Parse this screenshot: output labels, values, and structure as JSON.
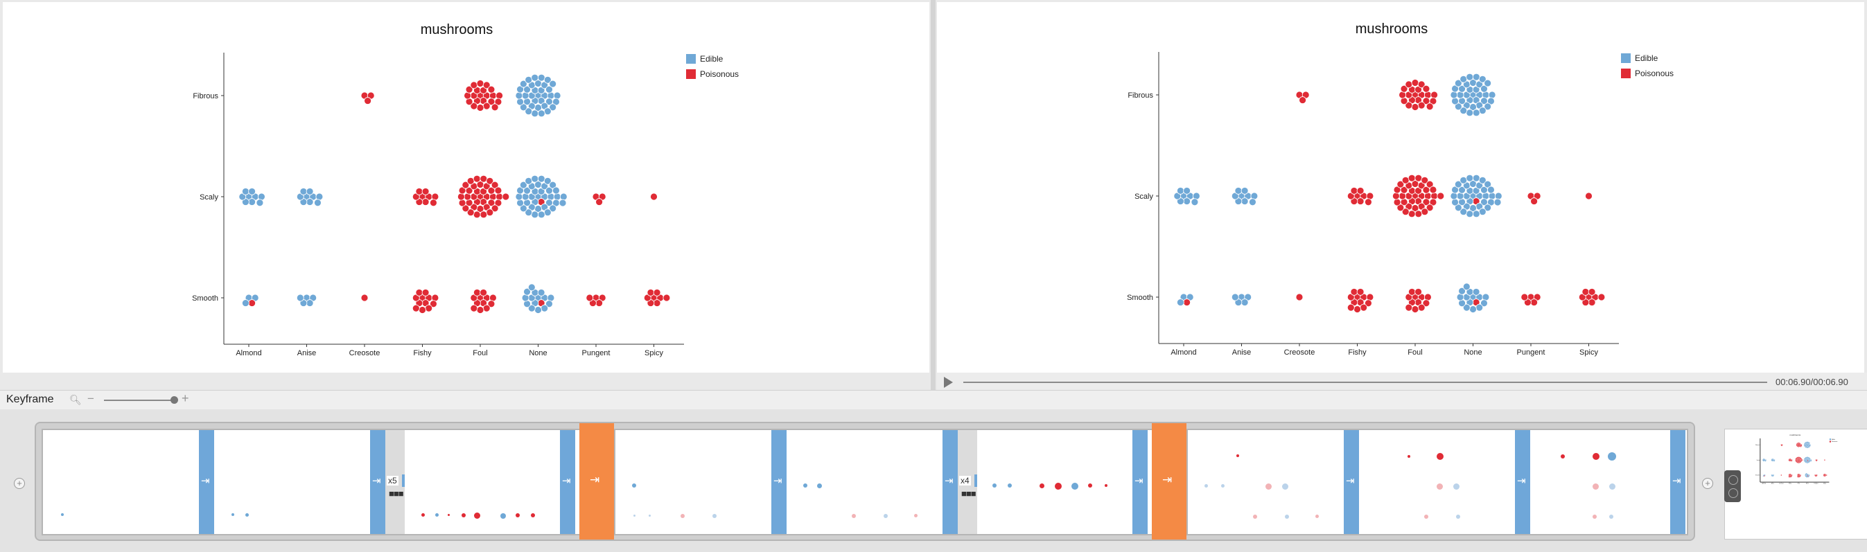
{
  "chart_data": [
    {
      "type": "scatter",
      "title": "mushrooms",
      "categories_x": [
        "Almond",
        "Anise",
        "Creosote",
        "Fishy",
        "Foul",
        "None",
        "Pungent",
        "Spicy"
      ],
      "categories_y": [
        "Fibrous",
        "Scaly",
        "Smooth"
      ],
      "legend": {
        "placement": "top-right",
        "entries": [
          {
            "name": "Edible",
            "color": "#6fa8d6"
          },
          {
            "name": "Poisonous",
            "color": "#e02b35"
          }
        ]
      },
      "clusters": [
        {
          "x": "Creosote",
          "y": "Fibrous",
          "edible": 0,
          "poisonous": 3
        },
        {
          "x": "Foul",
          "y": "Fibrous",
          "edible": 0,
          "poisonous": 22
        },
        {
          "x": "None",
          "y": "Fibrous",
          "edible": 36,
          "poisonous": 0
        },
        {
          "x": "Almond",
          "y": "Scaly",
          "edible": 9,
          "poisonous": 0
        },
        {
          "x": "Anise",
          "y": "Scaly",
          "edible": 9,
          "poisonous": 0
        },
        {
          "x": "Fishy",
          "y": "Scaly",
          "edible": 0,
          "poisonous": 9
        },
        {
          "x": "Foul",
          "y": "Scaly",
          "edible": 0,
          "poisonous": 38
        },
        {
          "x": "None",
          "y": "Scaly",
          "edible": 38,
          "poisonous": 1
        },
        {
          "x": "Pungent",
          "y": "Scaly",
          "edible": 0,
          "poisonous": 3
        },
        {
          "x": "Spicy",
          "y": "Scaly",
          "edible": 0,
          "poisonous": 1
        },
        {
          "x": "Almond",
          "y": "Smooth",
          "edible": 3,
          "poisonous": 1
        },
        {
          "x": "Anise",
          "y": "Smooth",
          "edible": 5,
          "poisonous": 0
        },
        {
          "x": "Creosote",
          "y": "Smooth",
          "edible": 0,
          "poisonous": 1
        },
        {
          "x": "Fishy",
          "y": "Smooth",
          "edible": 0,
          "poisonous": 12
        },
        {
          "x": "Foul",
          "y": "Smooth",
          "edible": 0,
          "poisonous": 12
        },
        {
          "x": "None",
          "y": "Smooth",
          "edible": 15,
          "poisonous": 1
        },
        {
          "x": "Pungent",
          "y": "Smooth",
          "edible": 0,
          "poisonous": 5
        },
        {
          "x": "Spicy",
          "y": "Smooth",
          "edible": 0,
          "poisonous": 8
        }
      ]
    },
    {
      "type": "scatter",
      "title": "mushrooms",
      "categories_x": [
        "Almond",
        "Anise",
        "Creosote",
        "Fishy",
        "Foul",
        "None",
        "Pungent",
        "Spicy"
      ],
      "categories_y": [
        "Fibrous",
        "Scaly",
        "Smooth"
      ],
      "legend": {
        "placement": "top-right",
        "entries": [
          {
            "name": "Edible",
            "color": "#6fa8d6"
          },
          {
            "name": "Poisonous",
            "color": "#e02b35"
          }
        ]
      },
      "clusters": "same as chart 1"
    }
  ],
  "player": {
    "time": "00:06.90/00:06.90"
  },
  "keyframe": {
    "label": "Keyframe",
    "zoom": 0.92
  },
  "timeline": {
    "repeat_counts": [
      "x5",
      "x4"
    ]
  },
  "colors": {
    "transition": "#6fa7d9",
    "group_transition": "#f48a45",
    "edible": "#6fa8d6",
    "poisonous": "#e02b35"
  },
  "icons": {
    "play": "play-icon",
    "search": "search-icon",
    "add": "plus-icon"
  }
}
